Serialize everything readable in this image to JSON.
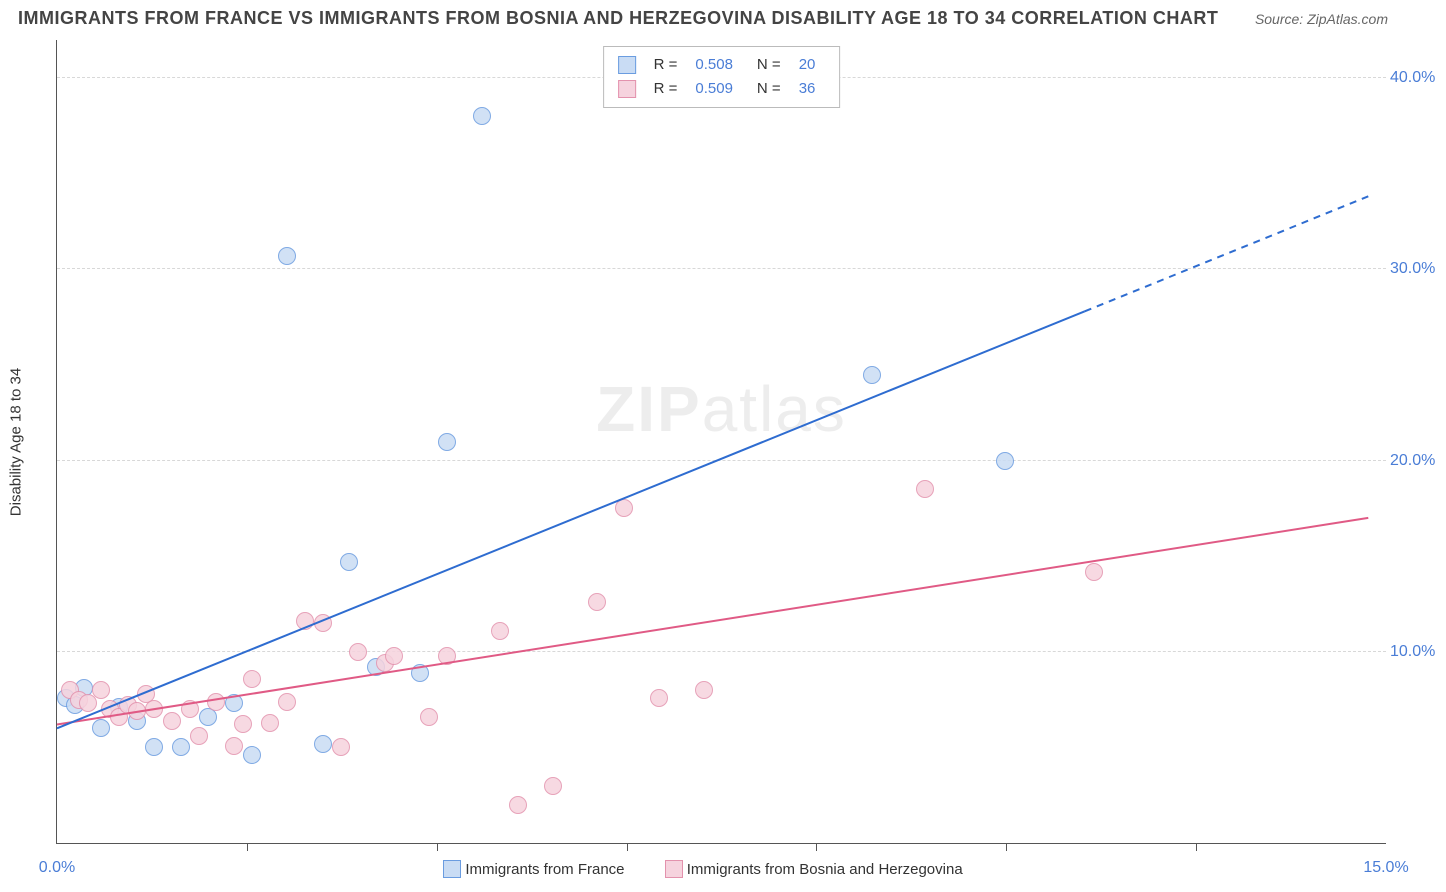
{
  "title": "IMMIGRANTS FROM FRANCE VS IMMIGRANTS FROM BOSNIA AND HERZEGOVINA DISABILITY AGE 18 TO 34 CORRELATION CHART",
  "source_label": "Source: ZipAtlas.com",
  "ylabel": "Disability Age 18 to 34",
  "watermark_a": "ZIP",
  "watermark_b": "atlas",
  "chart": {
    "type": "scatter-with-regression",
    "xlim": [
      0,
      15
    ],
    "ylim": [
      0,
      42
    ],
    "x_ticks": [
      0,
      15
    ],
    "x_tick_labels": [
      "0.0%",
      "15.0%"
    ],
    "x_minor_ticks": [
      2.14,
      4.29,
      6.43,
      8.57,
      10.71,
      12.86
    ],
    "y_grid": [
      10,
      20,
      30,
      40
    ],
    "y_grid_labels": [
      "10.0%",
      "20.0%",
      "30.0%",
      "40.0%"
    ],
    "background_color": "#ffffff",
    "grid_color": "#d8d8d8",
    "axis_color": "#555555",
    "tick_label_color": "#4a7dd6",
    "marker_radius": 9,
    "marker_stroke_width": 1.2,
    "line_width": 2
  },
  "series": {
    "france": {
      "label": "Immigrants from France",
      "fill": "#c9dcf4",
      "stroke": "#6a9ce0",
      "line_color": "#2e6cd0",
      "r_value": "0.508",
      "n_value": "20",
      "points": [
        [
          0.1,
          7.6
        ],
        [
          0.2,
          7.2
        ],
        [
          0.3,
          8.1
        ],
        [
          0.5,
          6.0
        ],
        [
          0.7,
          7.1
        ],
        [
          0.9,
          6.4
        ],
        [
          1.1,
          5.0
        ],
        [
          1.4,
          5.0
        ],
        [
          1.7,
          6.6
        ],
        [
          2.0,
          7.3
        ],
        [
          2.2,
          4.6
        ],
        [
          2.6,
          30.7
        ],
        [
          3.0,
          5.2
        ],
        [
          3.3,
          14.7
        ],
        [
          3.6,
          9.2
        ],
        [
          4.4,
          21.0
        ],
        [
          4.1,
          8.9
        ],
        [
          4.8,
          38.0
        ],
        [
          9.2,
          24.5
        ],
        [
          10.7,
          20.0
        ]
      ],
      "reg": {
        "y0": 6.0,
        "slope": 1.88,
        "solid_max_x": 11.6,
        "dash_max_x": 14.8
      }
    },
    "bosnia": {
      "label": "Immigrants from Bosnia and Herzegovina",
      "fill": "#f6d3de",
      "stroke": "#e392ad",
      "line_color": "#e05a85",
      "r_value": "0.509",
      "n_value": "36",
      "points": [
        [
          0.15,
          8.0
        ],
        [
          0.25,
          7.5
        ],
        [
          0.35,
          7.3
        ],
        [
          0.5,
          8.0
        ],
        [
          0.6,
          7.0
        ],
        [
          0.7,
          6.6
        ],
        [
          0.8,
          7.2
        ],
        [
          0.9,
          6.9
        ],
        [
          1.0,
          7.8
        ],
        [
          1.1,
          7.0
        ],
        [
          1.3,
          6.4
        ],
        [
          1.5,
          7.0
        ],
        [
          1.6,
          5.6
        ],
        [
          1.8,
          7.4
        ],
        [
          2.0,
          5.1
        ],
        [
          2.1,
          6.2
        ],
        [
          2.2,
          8.6
        ],
        [
          2.4,
          6.3
        ],
        [
          2.6,
          7.4
        ],
        [
          2.8,
          11.6
        ],
        [
          3.0,
          11.5
        ],
        [
          3.2,
          5.0
        ],
        [
          3.4,
          10.0
        ],
        [
          3.7,
          9.4
        ],
        [
          3.8,
          9.8
        ],
        [
          4.2,
          6.6
        ],
        [
          4.4,
          9.8
        ],
        [
          5.0,
          11.1
        ],
        [
          5.2,
          2.0
        ],
        [
          5.6,
          3.0
        ],
        [
          6.1,
          12.6
        ],
        [
          6.4,
          17.5
        ],
        [
          6.8,
          7.6
        ],
        [
          7.3,
          8.0
        ],
        [
          9.8,
          18.5
        ],
        [
          11.7,
          14.2
        ]
      ],
      "reg": {
        "y0": 6.2,
        "slope": 0.73,
        "solid_max_x": 14.8,
        "dash_max_x": 14.8
      }
    }
  }
}
